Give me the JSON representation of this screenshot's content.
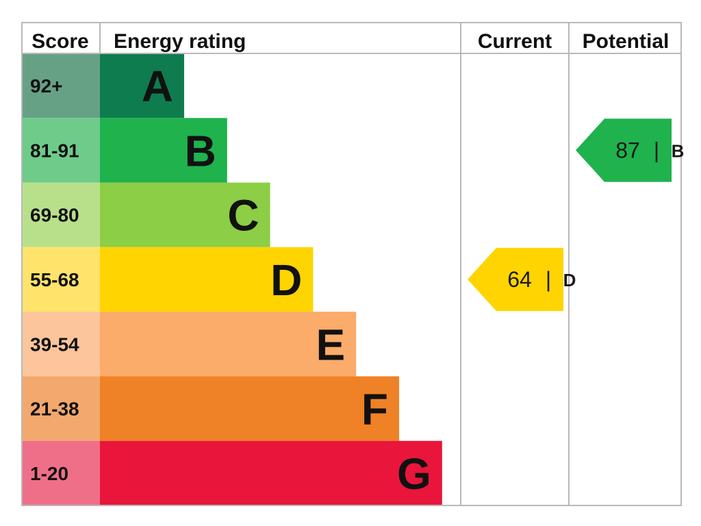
{
  "chart_data": {
    "type": "bar",
    "headers": {
      "score": "Score",
      "rating": "Energy rating",
      "current": "Current",
      "potential": "Potential"
    },
    "bands": [
      {
        "letter": "A",
        "range": "92+",
        "min": 92,
        "color": "#0e7c4f",
        "score_color": "#67a185"
      },
      {
        "letter": "B",
        "range": "81-91",
        "min": 81,
        "color": "#1fb24d",
        "score_color": "#6fcb8a"
      },
      {
        "letter": "C",
        "range": "69-80",
        "min": 69,
        "color": "#8cce46",
        "score_color": "#b8e08a"
      },
      {
        "letter": "D",
        "range": "55-68",
        "min": 55,
        "color": "#ffd400",
        "score_color": "#ffe36b"
      },
      {
        "letter": "E",
        "range": "39-54",
        "min": 39,
        "color": "#fbab6a",
        "score_color": "#fcc59c"
      },
      {
        "letter": "F",
        "range": "21-38",
        "min": 21,
        "color": "#ef8126",
        "score_color": "#f3a86d"
      },
      {
        "letter": "G",
        "range": "1-20",
        "min": 1,
        "color": "#e9153b",
        "score_color": "#ef6f88"
      }
    ],
    "current": {
      "value": 64,
      "value_label": "64",
      "separator": "|",
      "band": "D",
      "color": "#ffd400"
    },
    "potential": {
      "value": 87,
      "value_label": "87",
      "separator": "|",
      "band": "B",
      "color": "#1fb24d"
    }
  }
}
